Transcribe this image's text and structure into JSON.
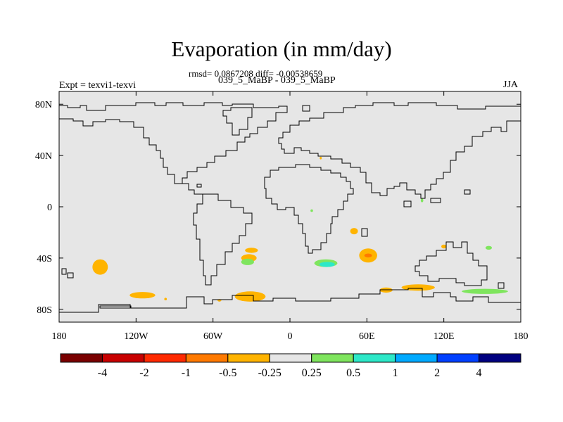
{
  "chart_data": {
    "type": "contour-map",
    "title": "Evaporation (in mm/day)",
    "subtitle_stats": "rmsd= 0.0867208 diff= -0.00538659",
    "subtitle_cases": "039_5_MaBP - 039_5_MaBP",
    "left_label": "Expt = texvi1-texvi",
    "right_label": "JJA",
    "lon_range": [
      -180,
      180
    ],
    "lat_range": [
      -90,
      90
    ],
    "x_ticks": [
      {
        "value": -180,
        "label": "180"
      },
      {
        "value": -120,
        "label": "120W"
      },
      {
        "value": -60,
        "label": "60W"
      },
      {
        "value": 0,
        "label": "0"
      },
      {
        "value": 60,
        "label": "60E"
      },
      {
        "value": 120,
        "label": "120E"
      },
      {
        "value": 180,
        "label": "180"
      }
    ],
    "y_ticks": [
      {
        "value": 80,
        "label": "80N"
      },
      {
        "value": 40,
        "label": "40N"
      },
      {
        "value": 0,
        "label": "0"
      },
      {
        "value": -40,
        "label": "40S"
      },
      {
        "value": -80,
        "label": "80S"
      }
    ],
    "colorbar": {
      "colors": [
        "#7a0000",
        "#c80000",
        "#ff2a00",
        "#ff7a00",
        "#ffb400",
        "#e6e6e6",
        "#7fe55e",
        "#2de8c8",
        "#00aaff",
        "#0040ff",
        "#000080"
      ],
      "labels": [
        "-4",
        "-2",
        "-1",
        "-0.5",
        "-0.25",
        "0.25",
        "0.5",
        "1",
        "2",
        "4"
      ]
    },
    "anomalies": [
      {
        "lon": -148,
        "lat": -47,
        "rx": 6,
        "ry": 6,
        "color": "#ffb400"
      },
      {
        "lon": -115,
        "lat": -69,
        "rx": 10,
        "ry": 2.5,
        "color": "#ffb400"
      },
      {
        "lon": -97,
        "lat": -72,
        "rx": 1,
        "ry": 1,
        "color": "#ffb400"
      },
      {
        "lon": -31,
        "lat": -70,
        "rx": 12,
        "ry": 4,
        "color": "#ffb400"
      },
      {
        "lon": -55,
        "lat": -73,
        "rx": 1.5,
        "ry": 1,
        "color": "#ffb400"
      },
      {
        "lon": -30,
        "lat": -34,
        "rx": 5,
        "ry": 2,
        "color": "#ffb400"
      },
      {
        "lon": -32,
        "lat": -40,
        "rx": 6,
        "ry": 3,
        "color": "#ffb400"
      },
      {
        "lon": -33,
        "lat": -43,
        "rx": 5,
        "ry": 2.5,
        "color": "#7fe55e"
      },
      {
        "lon": 28,
        "lat": -44,
        "rx": 9,
        "ry": 3,
        "color": "#7fe55e"
      },
      {
        "lon": 29,
        "lat": -45,
        "rx": 6,
        "ry": 2,
        "color": "#2de8c8"
      },
      {
        "lon": 50,
        "lat": -19,
        "rx": 3,
        "ry": 2.5,
        "color": "#ffb400"
      },
      {
        "lon": 61,
        "lat": -38,
        "rx": 7,
        "ry": 5.5,
        "color": "#ffb400"
      },
      {
        "lon": 61,
        "lat": -38,
        "rx": 3,
        "ry": 1.5,
        "color": "#ff7a00"
      },
      {
        "lon": 75,
        "lat": -65,
        "rx": 5,
        "ry": 2,
        "color": "#ffb400"
      },
      {
        "lon": 100,
        "lat": -63,
        "rx": 13,
        "ry": 2.5,
        "color": "#ffb400"
      },
      {
        "lon": 120,
        "lat": -31,
        "rx": 2,
        "ry": 1.5,
        "color": "#ffb400"
      },
      {
        "lon": 152,
        "lat": -66,
        "rx": 18,
        "ry": 2,
        "color": "#7fe55e"
      },
      {
        "lon": 155,
        "lat": -32,
        "rx": 2.5,
        "ry": 1.5,
        "color": "#7fe55e"
      },
      {
        "lon": 17,
        "lat": -3,
        "rx": 1,
        "ry": 1,
        "color": "#7fe55e"
      },
      {
        "lon": 103,
        "lat": 5,
        "rx": 1,
        "ry": 1.5,
        "color": "#7fe55e"
      },
      {
        "lon": 24,
        "lat": 38,
        "rx": 0.8,
        "ry": 1,
        "color": "#ffb400"
      }
    ]
  }
}
